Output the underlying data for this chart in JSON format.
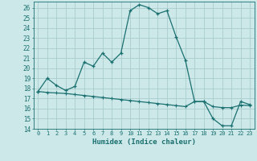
{
  "title": "",
  "xlabel": "Humidex (Indice chaleur)",
  "ylabel": "",
  "background_color": "#cce8e8",
  "grid_color": "#aacccc",
  "line_color": "#1a7070",
  "xlim": [
    -0.5,
    23.5
  ],
  "ylim": [
    14,
    26.6
  ],
  "xticks": [
    0,
    1,
    2,
    3,
    4,
    5,
    6,
    7,
    8,
    9,
    10,
    11,
    12,
    13,
    14,
    15,
    16,
    17,
    18,
    19,
    20,
    21,
    22,
    23
  ],
  "yticks": [
    14,
    15,
    16,
    17,
    18,
    19,
    20,
    21,
    22,
    23,
    24,
    25,
    26
  ],
  "curve1_x": [
    0,
    1,
    2,
    3,
    4,
    5,
    6,
    7,
    8,
    9,
    10,
    11,
    12,
    13,
    14,
    15,
    16,
    17,
    18,
    19,
    20,
    21,
    22,
    23
  ],
  "curve1_y": [
    17.7,
    19.0,
    18.3,
    17.8,
    18.2,
    20.6,
    20.2,
    21.5,
    20.6,
    21.5,
    25.7,
    26.3,
    26.0,
    25.4,
    25.7,
    23.1,
    20.8,
    16.7,
    16.7,
    15.0,
    14.3,
    14.3,
    16.7,
    16.4
  ],
  "curve2_x": [
    0,
    1,
    2,
    3,
    4,
    5,
    6,
    7,
    8,
    9,
    10,
    11,
    12,
    13,
    14,
    15,
    16,
    17,
    18,
    19,
    20,
    21,
    22,
    23
  ],
  "curve2_y": [
    17.7,
    17.6,
    17.55,
    17.5,
    17.4,
    17.3,
    17.2,
    17.1,
    17.0,
    16.9,
    16.8,
    16.7,
    16.6,
    16.5,
    16.4,
    16.3,
    16.2,
    16.7,
    16.7,
    16.2,
    16.1,
    16.1,
    16.35,
    16.3
  ]
}
